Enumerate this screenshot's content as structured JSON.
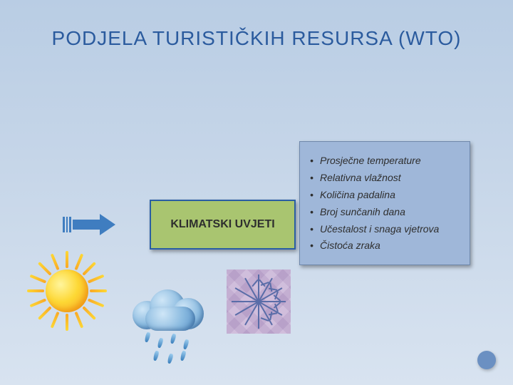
{
  "title": {
    "text": "PODJELA TURISTIČKIH RESURSA (WTO)",
    "color": "#2b5b9e",
    "fontsize": 28
  },
  "arrow": {
    "color": "#3f7dc0"
  },
  "center_box": {
    "label": "KLIMATSKI UVJETI",
    "background": "#a9c570",
    "border": "#2a5ea4",
    "text_color": "#2e2e2e"
  },
  "list_box": {
    "background": "#9fb7d9",
    "border": "#6f88ab",
    "text_color": "#2e2e2e",
    "items": [
      "Prosječne temperature",
      "Relativna vlažnost",
      "Količina padalina",
      "Broj sunčanih dana",
      "Učestalost i snaga vjetrova",
      "Čistoća zraka"
    ]
  },
  "icons": {
    "sun": "sun-icon",
    "cloud_rain": "cloud-rain-icon",
    "snowflake": "snowflake-icon"
  },
  "page_dot": {
    "color": "#6b90c2"
  }
}
